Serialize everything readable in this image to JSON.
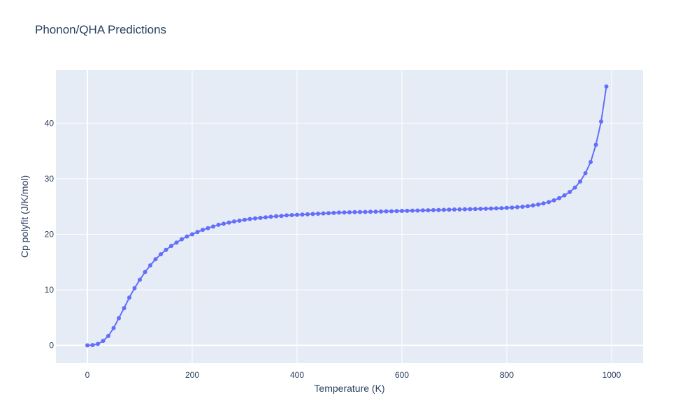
{
  "chart_data": {
    "type": "line",
    "title": "Phonon/QHA Predictions",
    "xlabel": "Temperature (K)",
    "ylabel": "Cp polyfit (J/K/mol)",
    "xlim": [
      -60,
      1060
    ],
    "ylim": [
      -3.2,
      49.6
    ],
    "x_ticks": [
      0,
      200,
      400,
      600,
      800,
      1000
    ],
    "y_ticks": [
      0,
      10,
      20,
      30,
      40
    ],
    "grid": true,
    "mode": "lines+markers",
    "series": [
      {
        "color": "#636efa",
        "x": [
          0,
          10,
          20,
          30,
          40,
          50,
          60,
          70,
          80,
          90,
          100,
          110,
          120,
          130,
          140,
          150,
          160,
          170,
          180,
          190,
          200,
          210,
          220,
          230,
          240,
          250,
          260,
          270,
          280,
          290,
          300,
          310,
          320,
          330,
          340,
          350,
          360,
          370,
          380,
          390,
          400,
          410,
          420,
          430,
          440,
          450,
          460,
          470,
          480,
          490,
          500,
          510,
          520,
          530,
          540,
          550,
          560,
          570,
          580,
          590,
          600,
          610,
          620,
          630,
          640,
          650,
          660,
          670,
          680,
          690,
          700,
          710,
          720,
          730,
          740,
          750,
          760,
          770,
          780,
          790,
          800,
          810,
          820,
          830,
          840,
          850,
          860,
          870,
          880,
          890,
          900,
          910,
          920,
          930,
          940,
          950,
          960,
          970,
          980,
          990
        ],
        "y": [
          0,
          0.05,
          0.25,
          0.8,
          1.7,
          3.1,
          4.9,
          6.7,
          8.6,
          10.3,
          11.8,
          13.2,
          14.4,
          15.5,
          16.4,
          17.2,
          17.9,
          18.5,
          19.1,
          19.6,
          20.0,
          20.4,
          20.8,
          21.1,
          21.4,
          21.7,
          21.9,
          22.1,
          22.3,
          22.45,
          22.6,
          22.75,
          22.85,
          22.95,
          23.05,
          23.15,
          23.25,
          23.3,
          23.4,
          23.45,
          23.5,
          23.55,
          23.6,
          23.65,
          23.7,
          23.75,
          23.8,
          23.85,
          23.9,
          23.92,
          23.95,
          23.98,
          24.0,
          24.02,
          24.05,
          24.07,
          24.1,
          24.12,
          24.15,
          24.17,
          24.2,
          24.22,
          24.25,
          24.27,
          24.3,
          24.32,
          24.35,
          24.37,
          24.4,
          24.42,
          24.45,
          24.47,
          24.5,
          24.52,
          24.55,
          24.58,
          24.6,
          24.63,
          24.66,
          24.7,
          24.75,
          24.8,
          24.88,
          24.96,
          25.05,
          25.2,
          25.35,
          25.55,
          25.8,
          26.1,
          26.5,
          27.0,
          27.6,
          28.4,
          29.5,
          31.0,
          33.0,
          36.1,
          40.3,
          46.6
        ]
      }
    ]
  }
}
